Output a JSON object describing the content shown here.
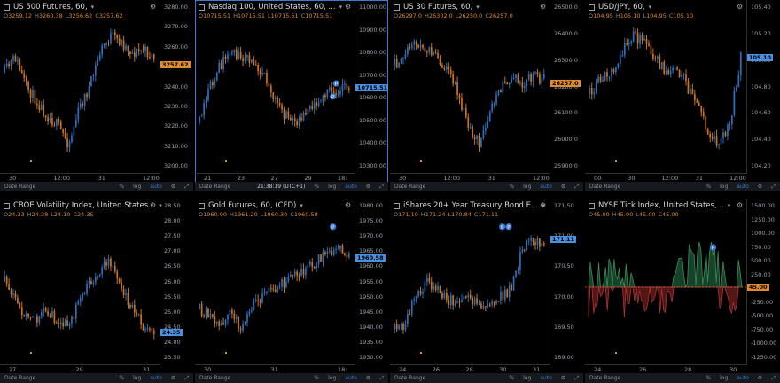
{
  "panels": [
    {
      "title": "US 500 Futures, 60,",
      "ohlc": {
        "o": "3259.12",
        "h": "3260.38",
        "l": "3256.62",
        "c": "3257.62"
      },
      "price": "3257.62",
      "y_ticks": [
        "3280.00",
        "3270.00",
        "3260.00",
        "3250.00",
        "3240.00",
        "3230.00",
        "3220.00",
        "3210.00",
        "3200.00"
      ],
      "x_ticks": [
        "30",
        "12:00",
        "31",
        "12:00"
      ],
      "toolbar": {
        "range": "Date Range",
        "pct": "%",
        "log": "log",
        "auto": "auto"
      }
    },
    {
      "title": "Nasdaq 100, United States, 60, ...",
      "ohlc": {
        "o": "10715.51",
        "h": "10715.51",
        "l": "10715.51",
        "c": "10715.51"
      },
      "price": "10715.51",
      "y_ticks": [
        "11000.00",
        "10900.00",
        "10800.00",
        "10700.00",
        "10600.00",
        "10500.00",
        "10400.00",
        "10300.00"
      ],
      "x_ticks": [
        "21",
        "23",
        "27",
        "29",
        "18:"
      ],
      "toolbar": {
        "range": "Date Range",
        "time": "21:38:19 (UTC+1)",
        "pct": "%",
        "log": "log",
        "auto": "auto"
      }
    },
    {
      "title": "US 30 Futures, 60,",
      "ohlc": {
        "o": "26297.0",
        "h": "26302.0",
        "l": "26250.0",
        "c": "26257.0"
      },
      "price": "26257.0",
      "y_ticks": [
        "26500.0",
        "26400.0",
        "26300.0",
        "26200.0",
        "26100.0",
        "26000.0",
        "25900.0"
      ],
      "x_ticks": [
        "30",
        "12:00",
        "31",
        "12:00"
      ],
      "toolbar": {
        "range": "Date Range",
        "pct": "%",
        "log": "log",
        "auto": "auto"
      }
    },
    {
      "title": "USD/JPY, 60,",
      "ohlc": {
        "o": "104.95",
        "h": "105.10",
        "l": "104.95",
        "c": "105.10"
      },
      "price": "105.10",
      "y_ticks": [
        "105.40",
        "105.20",
        "105.00",
        "104.80",
        "104.60",
        "104.40",
        "104.20"
      ],
      "x_ticks": [
        "00",
        "30",
        "12:00",
        "31",
        "12:00"
      ],
      "toolbar": {
        "range": "Date Range",
        "pct": "%",
        "log": "log",
        "auto": "auto"
      }
    },
    {
      "title": "CBOE Volatility Index, United States...",
      "ohlc": {
        "o": "24.33",
        "h": "24.38",
        "l": "24.10",
        "c": "24.35"
      },
      "price": "24.35",
      "y_ticks": [
        "28.50",
        "28.00",
        "27.50",
        "27.00",
        "26.50",
        "26.00",
        "25.50",
        "25.00",
        "24.50",
        "24.00",
        "23.50"
      ],
      "x_ticks": [
        "27",
        "29",
        "31"
      ],
      "toolbar": {
        "range": "Date Range",
        "pct": "%",
        "log": "log",
        "auto": "auto"
      }
    },
    {
      "title": "Gold Futures, 60, (CFD)",
      "ohlc": {
        "o": "1960.90",
        "h": "1961.20",
        "l": "1960.30",
        "c": "1960.58"
      },
      "price": "1960.58",
      "y_ticks": [
        "1980.00",
        "1975.00",
        "1970.00",
        "1965.00",
        "1960.00",
        "1955.00",
        "1950.00",
        "1945.00",
        "1940.00",
        "1935.00",
        "1930.00"
      ],
      "x_ticks": [
        "30",
        "31",
        "18:"
      ],
      "toolbar": {
        "range": "Date Range",
        "pct": "%",
        "log": "log",
        "auto": "auto"
      }
    },
    {
      "title": "iShares 20+ Year Treasury Bond E...",
      "ohlc": {
        "o": "171.10",
        "h": "171.24",
        "l": "170.84",
        "c": "171.11"
      },
      "price": "171.11",
      "y_ticks": [
        "171.50",
        "171.00",
        "170.50",
        "170.00",
        "169.50",
        "169.00"
      ],
      "x_ticks": [
        "24",
        "26",
        "28",
        "30",
        "31"
      ],
      "toolbar": {
        "range": "Date Range",
        "pct": "%",
        "log": "log",
        "auto": "auto"
      }
    },
    {
      "title": "NYSE Tick Index, United States,...",
      "ohlc": {
        "o": "45.00",
        "h": "45.00",
        "l": "45.00",
        "c": "45.00"
      },
      "price": "45.00",
      "y_ticks": [
        "1500.00",
        "1250.00",
        "1000.00",
        "750.00",
        "500.00",
        "250.00",
        "0.00",
        "-250.00",
        "-500.00",
        "-750.00",
        "-1000.00",
        "-1250.00"
      ],
      "x_ticks": [
        "24",
        "26",
        "28",
        "30"
      ],
      "toolbar": {
        "range": "Date Range",
        "pct": "%",
        "log": "log",
        "auto": "auto"
      }
    }
  ],
  "colors": {
    "up": "#2f6db5",
    "down": "#c9731e",
    "tag_up": "#4a90e2",
    "tag_down": "#e08a2e",
    "tick_pos": "#1f5e3a",
    "tick_neg": "#7a1f1f"
  }
}
